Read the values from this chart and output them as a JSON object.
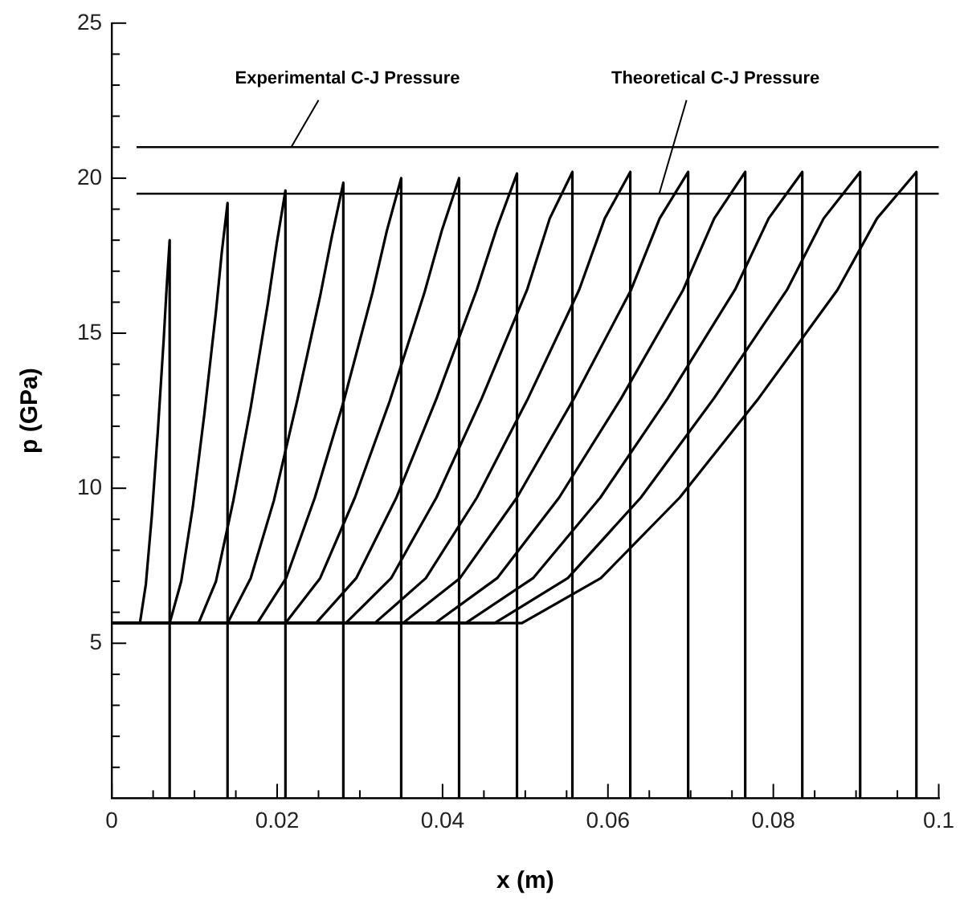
{
  "chart_data": {
    "type": "line",
    "xlabel": "x (m)",
    "ylabel": "p (GPa)",
    "xlim": [
      0,
      0.1
    ],
    "xticks": [
      0,
      {
        "value": 0.005,
        "label": null
      },
      {
        "value": 0.01,
        "label": null
      },
      {
        "value": 0.015,
        "label": null
      },
      0.02,
      {
        "value": 0.025,
        "label": null
      },
      {
        "value": 0.03,
        "label": null
      },
      {
        "value": 0.035,
        "label": null
      },
      0.04,
      {
        "value": 0.045,
        "label": null
      },
      {
        "value": 0.05,
        "label": null
      },
      {
        "value": 0.055,
        "label": null
      },
      0.06,
      {
        "value": 0.065,
        "label": null
      },
      {
        "value": 0.07,
        "label": null
      },
      {
        "value": 0.075,
        "label": null
      },
      0.08,
      {
        "value": 0.085,
        "label": null
      },
      {
        "value": 0.09,
        "label": null
      },
      {
        "value": 0.095,
        "label": null
      },
      0.1
    ],
    "ylim": [
      0,
      25
    ],
    "yticks": [
      {
        "value": 1,
        "label": null
      },
      {
        "value": 2,
        "label": null
      },
      {
        "value": 3,
        "label": null
      },
      {
        "value": 4,
        "label": null
      },
      5,
      {
        "value": 6,
        "label": null
      },
      {
        "value": 7,
        "label": null
      },
      {
        "value": 8,
        "label": null
      },
      {
        "value": 9,
        "label": null
      },
      10,
      {
        "value": 11,
        "label": null
      },
      {
        "value": 12,
        "label": null
      },
      {
        "value": 13,
        "label": null
      },
      {
        "value": 14,
        "label": null
      },
      15,
      {
        "value": 16,
        "label": null
      },
      {
        "value": 17,
        "label": null
      },
      {
        "value": 18,
        "label": null
      },
      {
        "value": 19,
        "label": null
      },
      20,
      {
        "value": 21,
        "label": null
      },
      {
        "value": 22,
        "label": null
      },
      {
        "value": 23,
        "label": null
      },
      {
        "value": 24,
        "label": null
      },
      25
    ],
    "grid": false,
    "legend": false,
    "marker": "none",
    "line_style": "solid",
    "ref_lines": [
      {
        "axis": "y",
        "value": 21,
        "label": "Experimental C-J Pressure",
        "color": "#000000"
      },
      {
        "axis": "y",
        "value": 19.5,
        "label": "Theoretical C-J Pressure",
        "color": "#000000"
      }
    ],
    "series": [
      {
        "type": "line",
        "color": "#000000",
        "x": [
          0,
          0.0034,
          0.00412,
          0.00484,
          0.00556,
          0.00628,
          0.00664,
          0.007,
          0.007
        ],
        "values": [
          5.65,
          5.65,
          6.9,
          9.1,
          11.8,
          14.8,
          16.5,
          18.0,
          0
        ]
      },
      {
        "type": "line",
        "color": "#000000",
        "x": [
          0,
          0.007,
          0.0084,
          0.0098,
          0.0112,
          0.0126,
          0.0133,
          0.014,
          0.014
        ],
        "values": [
          5.65,
          5.65,
          7.0,
          9.4,
          12.4,
          15.7,
          17.6,
          19.2,
          0
        ]
      },
      {
        "type": "line",
        "color": "#000000",
        "x": [
          0,
          0.0105,
          0.0126,
          0.0147,
          0.0168,
          0.0189,
          0.01995,
          0.021,
          0.021
        ],
        "values": [
          5.65,
          5.65,
          7.0,
          9.6,
          12.6,
          16.0,
          17.9,
          19.6,
          0
        ]
      },
      {
        "type": "line",
        "color": "#000000",
        "x": [
          0,
          0.014,
          0.0168,
          0.0196,
          0.0224,
          0.0252,
          0.0266,
          0.028,
          0.028
        ],
        "values": [
          5.65,
          5.65,
          7.1,
          9.6,
          12.8,
          16.2,
          18.1,
          19.85,
          0
        ]
      },
      {
        "type": "line",
        "color": "#000000",
        "x": [
          0,
          0.0176,
          0.02108,
          0.02456,
          0.02804,
          0.03152,
          0.03326,
          0.035,
          0.035
        ],
        "values": [
          5.65,
          5.65,
          7.1,
          9.7,
          12.8,
          16.3,
          18.3,
          20.0,
          0
        ]
      },
      {
        "type": "line",
        "color": "#000000",
        "x": [
          0,
          0.021,
          0.0252,
          0.0294,
          0.0336,
          0.0378,
          0.0399,
          0.042,
          0.042
        ],
        "values": [
          5.65,
          5.65,
          7.1,
          9.7,
          12.8,
          16.3,
          18.3,
          20.0,
          0
        ]
      },
      {
        "type": "line",
        "color": "#000000",
        "x": [
          0,
          0.0247,
          0.02956,
          0.03442,
          0.03928,
          0.04414,
          0.04657,
          0.049,
          0.049
        ],
        "values": [
          5.65,
          5.65,
          7.1,
          9.7,
          12.9,
          16.4,
          18.4,
          20.15,
          0
        ]
      },
      {
        "type": "line",
        "color": "#000000",
        "x": [
          0,
          0.0283,
          0.03378,
          0.03926,
          0.04474,
          0.05022,
          0.05296,
          0.0557,
          0.0557
        ],
        "values": [
          5.65,
          5.65,
          7.1,
          9.7,
          12.9,
          16.4,
          18.7,
          20.2,
          0
        ]
      },
      {
        "type": "line",
        "color": "#000000",
        "x": [
          0,
          0.0318,
          0.03798,
          0.04416,
          0.05034,
          0.05652,
          0.05961,
          0.0627,
          0.0627
        ],
        "values": [
          5.65,
          5.65,
          7.1,
          9.7,
          12.9,
          16.4,
          18.7,
          20.2,
          0
        ]
      },
      {
        "type": "line",
        "color": "#000000",
        "x": [
          0,
          0.0352,
          0.0421,
          0.049,
          0.0559,
          0.0628,
          0.06625,
          0.0697,
          0.0697
        ],
        "values": [
          5.65,
          5.65,
          7.1,
          9.7,
          12.9,
          16.4,
          18.7,
          20.2,
          0
        ]
      },
      {
        "type": "line",
        "color": "#000000",
        "x": [
          0,
          0.0391,
          0.0466,
          0.0541,
          0.0616,
          0.0691,
          0.07285,
          0.0766,
          0.0766
        ],
        "values": [
          5.65,
          5.65,
          7.1,
          9.7,
          12.9,
          16.4,
          18.7,
          20.2,
          0
        ]
      },
      {
        "type": "line",
        "color": "#000000",
        "x": [
          0,
          0.0428,
          0.05094,
          0.05908,
          0.06722,
          0.07536,
          0.07943,
          0.0835,
          0.0835
        ],
        "values": [
          5.65,
          5.65,
          7.1,
          9.7,
          12.9,
          16.4,
          18.7,
          20.2,
          0
        ]
      },
      {
        "type": "line",
        "color": "#000000",
        "x": [
          0,
          0.0463,
          0.05514,
          0.06398,
          0.07282,
          0.08166,
          0.08608,
          0.0905,
          0.0905
        ],
        "values": [
          5.65,
          5.65,
          7.1,
          9.7,
          12.9,
          16.4,
          18.7,
          20.2,
          0
        ]
      },
      {
        "type": "line",
        "color": "#000000",
        "x": [
          0,
          0.0496,
          0.05914,
          0.06868,
          0.07822,
          0.08776,
          0.09253,
          0.0973,
          0.0973
        ],
        "values": [
          5.65,
          5.65,
          7.1,
          9.7,
          12.9,
          16.4,
          18.7,
          20.2,
          0
        ]
      }
    ]
  }
}
